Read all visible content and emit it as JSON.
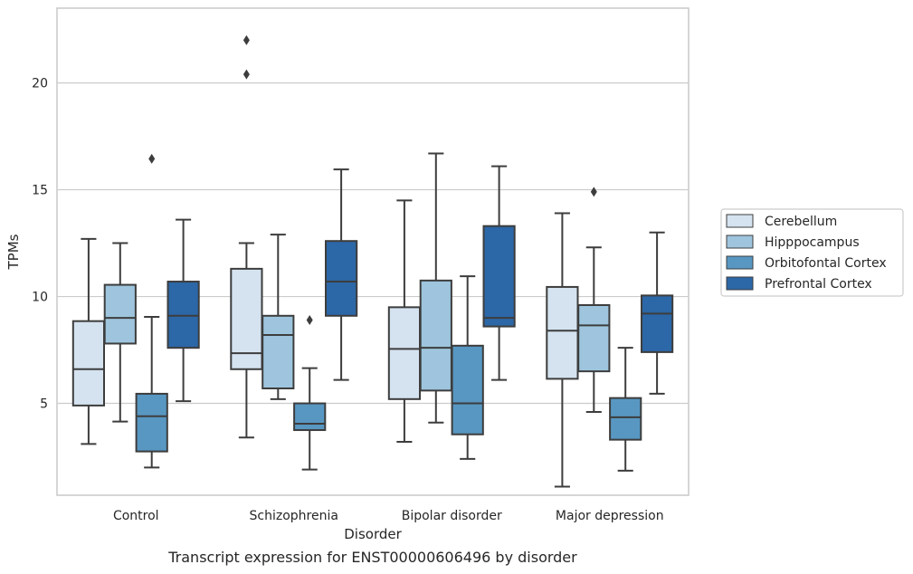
{
  "caption": "Transcript expression for ENST00000606496 by disorder",
  "chart_data": {
    "type": "box",
    "xlabel": "Disorder",
    "ylabel": "TPMs",
    "categories": [
      "Control",
      "Schizophrenia",
      "Bipolar disorder",
      "Major depression"
    ],
    "ylim": [
      0.7,
      23.5
    ],
    "yticks": [
      5,
      10,
      15,
      20
    ],
    "grid": true,
    "legend_position": "right",
    "series": [
      {
        "name": "Cerebellum",
        "color": "#d5e3f0",
        "boxes": [
          {
            "whislo": 3.1,
            "q1": 4.9,
            "med": 6.6,
            "q3": 8.85,
            "whishi": 12.7,
            "fliers": []
          },
          {
            "whislo": 3.4,
            "q1": 6.6,
            "med": 7.35,
            "q3": 11.3,
            "whishi": 12.5,
            "fliers": [
              20.4,
              22.0
            ]
          },
          {
            "whislo": 3.2,
            "q1": 5.2,
            "med": 7.55,
            "q3": 9.5,
            "whishi": 14.5,
            "fliers": []
          },
          {
            "whislo": 1.1,
            "q1": 6.15,
            "med": 8.4,
            "q3": 10.45,
            "whishi": 13.9,
            "fliers": []
          }
        ]
      },
      {
        "name": "Hipppocampus",
        "color": "#9ec5dd",
        "boxes": [
          {
            "whislo": 4.15,
            "q1": 7.8,
            "med": 9.0,
            "q3": 10.55,
            "whishi": 12.5,
            "fliers": []
          },
          {
            "whislo": 5.2,
            "q1": 5.7,
            "med": 8.2,
            "q3": 9.1,
            "whishi": 12.9,
            "fliers": []
          },
          {
            "whislo": 4.1,
            "q1": 5.6,
            "med": 7.6,
            "q3": 10.75,
            "whishi": 16.7,
            "fliers": []
          },
          {
            "whislo": 4.6,
            "q1": 6.5,
            "med": 8.65,
            "q3": 9.6,
            "whishi": 12.3,
            "fliers": [
              14.9
            ]
          }
        ]
      },
      {
        "name": "Orbitofontal Cortex",
        "color": "#5897c2",
        "boxes": [
          {
            "whislo": 2.0,
            "q1": 2.75,
            "med": 4.4,
            "q3": 5.45,
            "whishi": 9.05,
            "fliers": [
              16.45
            ]
          },
          {
            "whislo": 1.9,
            "q1": 3.75,
            "med": 4.05,
            "q3": 5.0,
            "whishi": 6.65,
            "fliers": [
              8.9
            ]
          },
          {
            "whislo": 2.4,
            "q1": 3.55,
            "med": 5.0,
            "q3": 7.7,
            "whishi": 10.95,
            "fliers": []
          },
          {
            "whislo": 1.85,
            "q1": 3.3,
            "med": 4.35,
            "q3": 5.25,
            "whishi": 7.6,
            "fliers": []
          }
        ]
      },
      {
        "name": "Prefrontal Cortex",
        "color": "#2c67a7",
        "boxes": [
          {
            "whislo": 5.1,
            "q1": 7.6,
            "med": 9.1,
            "q3": 10.7,
            "whishi": 13.6,
            "fliers": []
          },
          {
            "whislo": 6.1,
            "q1": 9.1,
            "med": 10.7,
            "q3": 12.6,
            "whishi": 15.95,
            "fliers": []
          },
          {
            "whislo": 6.1,
            "q1": 8.6,
            "med": 9.0,
            "q3": 13.3,
            "whishi": 16.1,
            "fliers": []
          },
          {
            "whislo": 5.45,
            "q1": 7.4,
            "med": 9.2,
            "q3": 10.05,
            "whishi": 13.0,
            "fliers": []
          }
        ]
      }
    ]
  }
}
